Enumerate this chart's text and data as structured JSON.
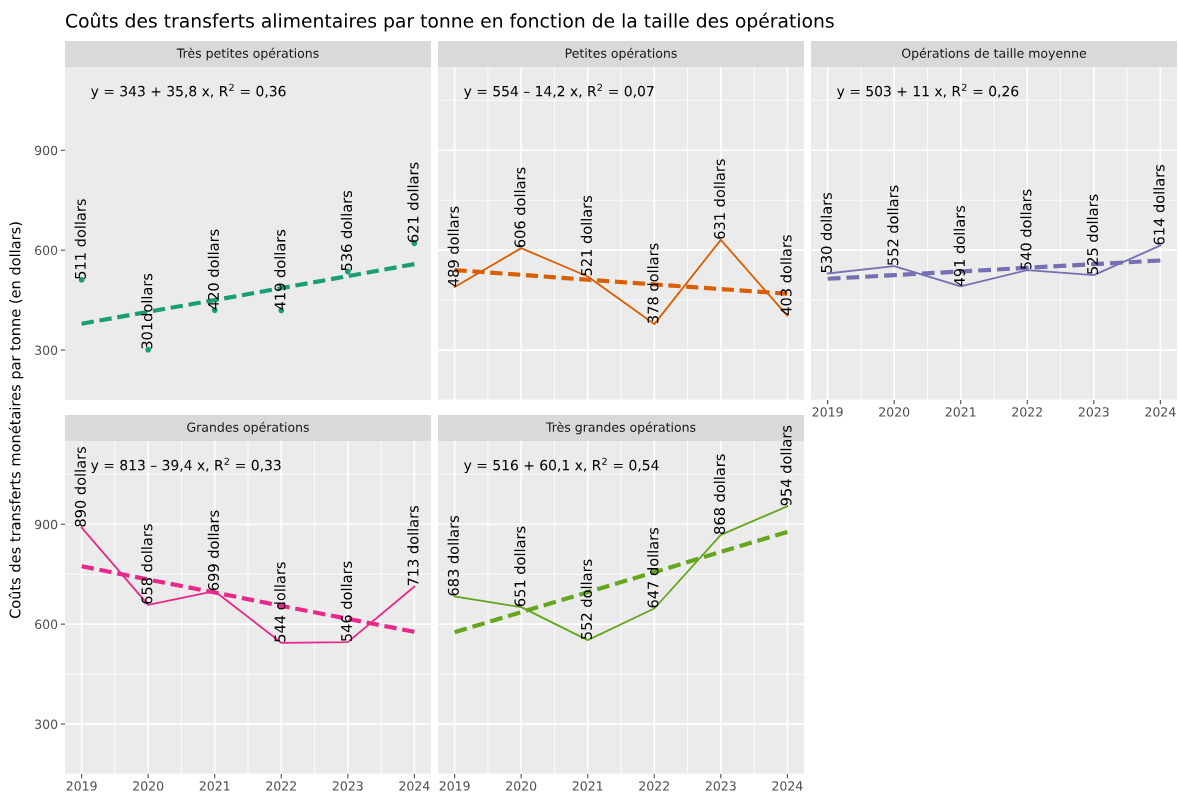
{
  "chart_data": [
    {
      "type": "line",
      "title": "Très petites opérations",
      "ylabel": "Coûts des transferts monétaires par tonne (en dollars)",
      "x": [
        2019,
        2020,
        2021,
        2022,
        2023,
        2024
      ],
      "xlim": [
        2018.75,
        2024.25
      ],
      "xticks": [
        2019,
        2020,
        2021,
        2022,
        2023,
        2024
      ],
      "ylim": [
        150,
        1150
      ],
      "yticks": [
        300,
        600,
        900
      ],
      "tick_labels": "y",
      "grid": false,
      "annotations": [
        "Coûts des transferts alimentaires par tonne en fonction de la taille des opérations",
        "y = 343 + 35,8 x, R$^{2}$ = 0,36"
      ],
      "series": [
        {
          "type": "scatter",
          "marker": "circle",
          "color": "#1b9e77",
          "values": [
            511,
            301,
            420,
            419,
            536,
            621
          ],
          "value_labels": [
            "511 dollars",
            "301dollars",
            "420 dollars",
            "419 dollars",
            "536 dollars",
            "621 dollars"
          ]
        },
        {
          "type": "line",
          "line_style": "dashed",
          "color": "#1b9e77",
          "values": [
            379,
            415,
            450,
            486,
            522,
            558
          ]
        }
      ]
    },
    {
      "type": "line",
      "title": "Petites opérations",
      "annotations": [
        "y = 554 – 14,2 x, R$^{2}$ = 0,07"
      ],
      "x": [
        2019,
        2020,
        2021,
        2022,
        2023,
        2024
      ],
      "xlim": [
        2018.75,
        2024.25
      ],
      "xticks": [
        2019,
        2020,
        2021,
        2022,
        2023,
        2024
      ],
      "ylim": [
        150,
        1150
      ],
      "yticks": [
        300,
        600,
        900
      ],
      "tick_labels": false,
      "grid": true,
      "series": [
        {
          "type": "line",
          "line_style": "solid",
          "color": "#d95f02",
          "values": [
            489,
            606,
            521,
            378,
            631,
            403
          ],
          "value_labels": [
            "489 dollars",
            "606 dollars",
            "521 dollars",
            "378 dollars",
            "631 dollars",
            "403 dollars"
          ]
        },
        {
          "type": "line",
          "line_style": "dashed",
          "color": "#d95f02",
          "values": [
            540,
            526,
            511,
            497,
            483,
            469
          ]
        }
      ]
    },
    {
      "type": "line",
      "title": "Opérations de taille moyenne",
      "annotations": [
        "y = 503 + 11 x, R$^{2}$ = 0,26"
      ],
      "x": [
        2019,
        2020,
        2021,
        2022,
        2023,
        2024
      ],
      "xlim": [
        2018.75,
        2024.25
      ],
      "xticks": [
        2019,
        2020,
        2021,
        2022,
        2023,
        2024
      ],
      "ylim": [
        150,
        1150
      ],
      "yticks": [
        300,
        600,
        900
      ],
      "tick_labels": "x",
      "grid": true,
      "series": [
        {
          "type": "line",
          "line_style": "solid",
          "color": "#7570b3",
          "values": [
            530,
            552,
            491,
            540,
            525,
            614
          ],
          "value_labels": [
            "530 dollars",
            "552 dollars",
            "491 dollars",
            "540 dollars",
            "525 dollars",
            "614 dollars"
          ]
        },
        {
          "type": "line",
          "line_style": "dashed",
          "color": "#7570b3",
          "values": [
            514,
            525,
            536,
            547,
            558,
            569
          ]
        }
      ]
    },
    {
      "type": "line",
      "title": "Grandes opérations",
      "annotations": [
        "y = 813 – 39,4 x, R$^{2}$ = 0,33"
      ],
      "x": [
        2019,
        2020,
        2021,
        2022,
        2023,
        2024
      ],
      "xlim": [
        2018.75,
        2024.25
      ],
      "xticks": [
        2019,
        2020,
        2021,
        2022,
        2023,
        2024
      ],
      "ylim": [
        150,
        1150
      ],
      "yticks": [
        300,
        600,
        900
      ],
      "grid": true,
      "series": [
        {
          "type": "line",
          "line_style": "solid",
          "color": "#e7298a",
          "values": [
            890,
            658,
            699,
            544,
            546,
            713
          ],
          "value_labels": [
            "890 dollars",
            "658 dollars",
            "699 dollars",
            "544 dollars",
            "546 dollars",
            "713 dollars"
          ]
        },
        {
          "type": "line",
          "line_style": "dashed",
          "color": "#e7298a",
          "values": [
            774,
            734,
            695,
            655,
            616,
            577
          ]
        }
      ]
    },
    {
      "type": "line",
      "title": "Très grandes opérations",
      "annotations": [
        "y = 516 + 60,1 x, R$^{2}$ = 0,54"
      ],
      "x": [
        2019,
        2020,
        2021,
        2022,
        2023,
        2024
      ],
      "xlim": [
        2018.75,
        2024.25
      ],
      "xticks": [
        2019,
        2020,
        2021,
        2022,
        2023,
        2024
      ],
      "ylim": [
        150,
        1150
      ],
      "yticks": [
        300,
        600,
        900
      ],
      "tick_labels": "x",
      "grid": true,
      "series": [
        {
          "type": "line",
          "line_style": "solid",
          "color": "#66a61e",
          "values": [
            683,
            651,
            552,
            647,
            868,
            954
          ],
          "value_labels": [
            "683 dollars",
            "651 dollars",
            "552 dollars",
            "647 dollars",
            "868 dollars",
            "954 dollars"
          ]
        },
        {
          "type": "line",
          "line_style": "dashed",
          "color": "#66a61e",
          "values": [
            576,
            636,
            696,
            756,
            817,
            877
          ]
        }
      ]
    }
  ]
}
